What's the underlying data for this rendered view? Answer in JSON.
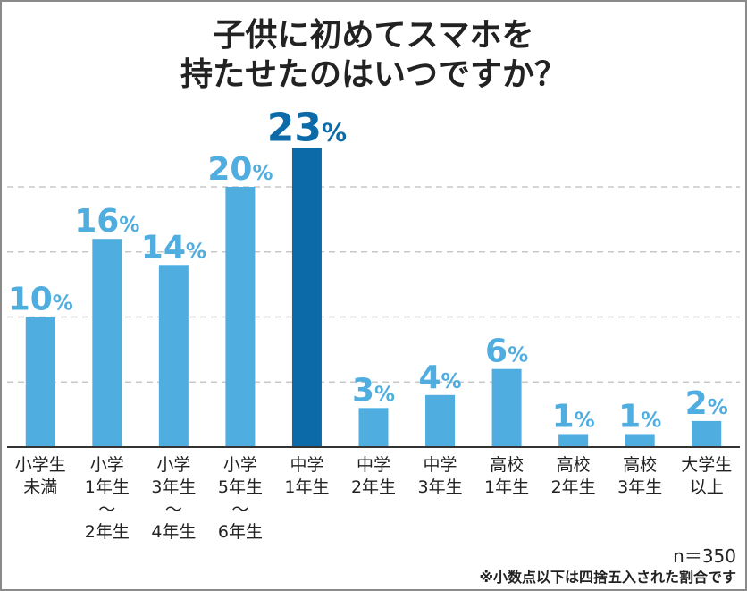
{
  "chart_data": {
    "type": "bar",
    "title_lines": [
      "子供に初めてスマホを",
      "持たせたのはいつですか？"
    ],
    "unit": "%",
    "categories": [
      [
        "小学生",
        "未満"
      ],
      [
        "小学",
        "1年生",
        "〜",
        "2年生"
      ],
      [
        "小学",
        "3年生",
        "〜",
        "4年生"
      ],
      [
        "小学",
        "5年生",
        "〜",
        "6年生"
      ],
      [
        "中学",
        "1年生"
      ],
      [
        "中学",
        "2年生"
      ],
      [
        "中学",
        "3年生"
      ],
      [
        "高校",
        "1年生"
      ],
      [
        "高校",
        "2年生"
      ],
      [
        "高校",
        "3年生"
      ],
      [
        "大学生",
        "以上"
      ]
    ],
    "values": [
      10,
      16,
      14,
      20,
      23,
      3,
      4,
      6,
      1,
      1,
      2
    ],
    "highlight_index": 4,
    "ylim": [
      0,
      25
    ],
    "gridlines": [
      5,
      10,
      15,
      20
    ],
    "colors": {
      "bar": "#4faddf",
      "highlight": "#0c6aa8",
      "label": "#4faddf",
      "highlight_label": "#0c6aa8",
      "grid": "#c8c8c8",
      "axis": "#333333",
      "text": "#222222"
    }
  },
  "footer": {
    "n": "n＝350",
    "note": "※小数点以下は四捨五入された割合です"
  }
}
